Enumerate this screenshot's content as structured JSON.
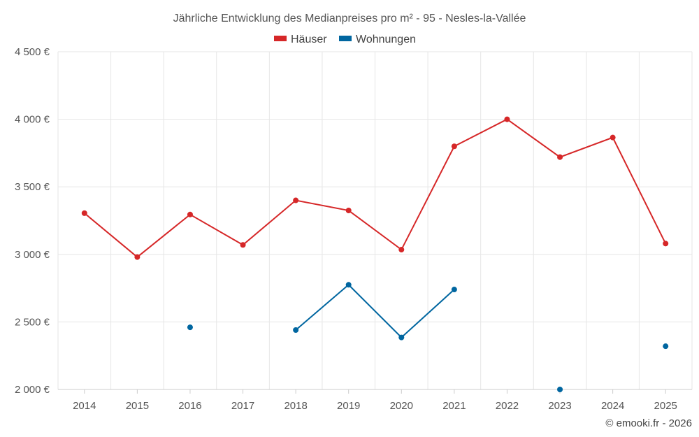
{
  "chart_data": {
    "type": "line",
    "title": "Jährliche Entwicklung des Medianpreises pro m² - 95 - Nesles-la-Vallée",
    "categories": [
      "2014",
      "2015",
      "2016",
      "2017",
      "2018",
      "2019",
      "2020",
      "2021",
      "2022",
      "2023",
      "2024",
      "2025"
    ],
    "ylim": [
      2000,
      4500
    ],
    "yticks": [
      2000,
      2500,
      3000,
      3500,
      4000,
      4500
    ],
    "ytick_labels": [
      "2 000 €",
      "2 500 €",
      "3 000 €",
      "3 500 €",
      "4 000 €",
      "4 500 €"
    ],
    "grid": true,
    "legend_position": "top-center",
    "series": [
      {
        "name": "Häuser",
        "color": "#d62728",
        "values": [
          3305,
          2980,
          3295,
          3070,
          3400,
          3325,
          3035,
          3800,
          4000,
          3720,
          3865,
          3080
        ]
      },
      {
        "name": "Wohnungen",
        "color": "#0066a0",
        "values": [
          null,
          null,
          2460,
          null,
          2440,
          2775,
          2385,
          2740,
          null,
          2000,
          null,
          2320
        ]
      }
    ]
  },
  "credit": "© emooki.fr - 2026"
}
